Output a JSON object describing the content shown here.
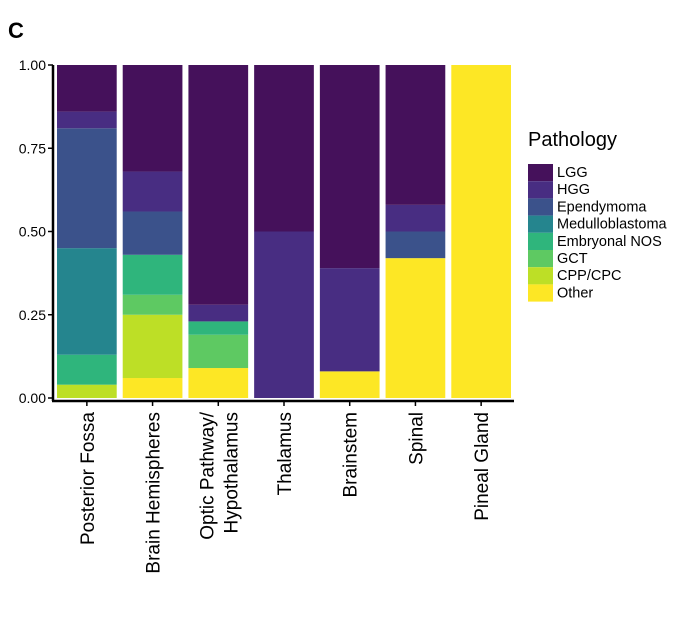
{
  "panel_label": "C",
  "chart_data": {
    "type": "bar",
    "stacked": true,
    "categories": [
      [
        "Posterior Fossa"
      ],
      [
        "Brain Hemispheres"
      ],
      [
        "Optic Pathway/",
        "Hypothalamus"
      ],
      [
        "Thalamus"
      ],
      [
        "Brainstem"
      ],
      [
        "Spinal"
      ],
      [
        "Pineal Gland"
      ]
    ],
    "ylim": [
      0,
      1
    ],
    "yticks": [
      0,
      0.25,
      0.5,
      0.75,
      1.0
    ],
    "ytick_labels": [
      "0.00",
      "0.25",
      "0.50",
      "0.75",
      "1.00"
    ],
    "xlabel": "",
    "ylabel": "",
    "legend": {
      "title": "Pathology",
      "placement": "right"
    },
    "series": [
      {
        "name": "Other",
        "color": "#fde725",
        "values": [
          0.0,
          0.06,
          0.09,
          0.0,
          0.08,
          0.42,
          1.0
        ]
      },
      {
        "name": "CPP/CPC",
        "color": "#bddf26",
        "values": [
          0.04,
          0.19,
          0.0,
          0.0,
          0.0,
          0.0,
          0.0
        ]
      },
      {
        "name": "GCT",
        "color": "#5ec962",
        "values": [
          0.0,
          0.06,
          0.1,
          0.0,
          0.0,
          0.0,
          0.0
        ]
      },
      {
        "name": "Embryonal NOS",
        "color": "#2fb57c",
        "values": [
          0.09,
          0.12,
          0.04,
          0.0,
          0.0,
          0.0,
          0.0
        ]
      },
      {
        "name": "Medulloblastoma",
        "color": "#25858e",
        "values": [
          0.32,
          0.0,
          0.0,
          0.0,
          0.0,
          0.0,
          0.0
        ]
      },
      {
        "name": "Ependymoma",
        "color": "#3b528b",
        "values": [
          0.36,
          0.13,
          0.0,
          0.0,
          0.0,
          0.08,
          0.0
        ]
      },
      {
        "name": "HGG",
        "color": "#482d82",
        "values": [
          0.05,
          0.12,
          0.05,
          0.5,
          0.31,
          0.08,
          0.0
        ]
      },
      {
        "name": "LGG",
        "color": "#45115b",
        "values": [
          0.14,
          0.32,
          0.72,
          0.5,
          0.61,
          0.42,
          0.0
        ]
      }
    ],
    "legend_order": [
      "LGG",
      "HGG",
      "Ependymoma",
      "Medulloblastoma",
      "Embryonal NOS",
      "GCT",
      "CPP/CPC",
      "Other"
    ]
  }
}
